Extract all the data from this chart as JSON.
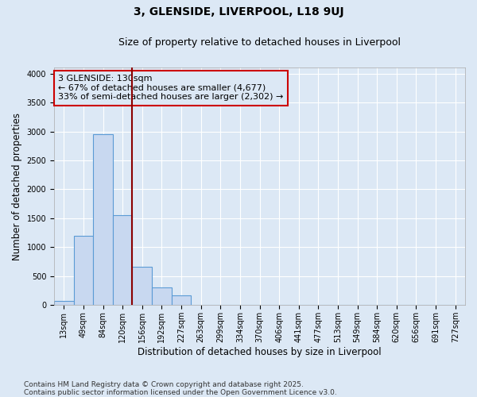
{
  "title": "3, GLENSIDE, LIVERPOOL, L18 9UJ",
  "subtitle": "Size of property relative to detached houses in Liverpool",
  "xlabel": "Distribution of detached houses by size in Liverpool",
  "ylabel": "Number of detached properties",
  "bar_labels": [
    "13sqm",
    "49sqm",
    "84sqm",
    "120sqm",
    "156sqm",
    "192sqm",
    "227sqm",
    "263sqm",
    "299sqm",
    "334sqm",
    "370sqm",
    "406sqm",
    "441sqm",
    "477sqm",
    "513sqm",
    "549sqm",
    "584sqm",
    "620sqm",
    "656sqm",
    "691sqm",
    "727sqm"
  ],
  "bar_values": [
    75,
    1200,
    2950,
    1550,
    660,
    310,
    175,
    0,
    0,
    0,
    0,
    0,
    0,
    0,
    0,
    0,
    0,
    0,
    0,
    0,
    0
  ],
  "bar_color": "#c8d8f0",
  "bar_edgecolor": "#5b9bd5",
  "vline_x": 3.5,
  "annotation_text": "3 GLENSIDE: 130sqm\n← 67% of detached houses are smaller (4,677)\n33% of semi-detached houses are larger (2,302) →",
  "annotation_box_edgecolor": "#cc0000",
  "vline_color": "#8b0000",
  "ylim": [
    0,
    4100
  ],
  "yticks": [
    0,
    500,
    1000,
    1500,
    2000,
    2500,
    3000,
    3500,
    4000
  ],
  "grid_color": "#ffffff",
  "bg_color": "#dce8f5",
  "footer_line1": "Contains HM Land Registry data © Crown copyright and database right 2025.",
  "footer_line2": "Contains public sector information licensed under the Open Government Licence v3.0.",
  "title_fontsize": 10,
  "subtitle_fontsize": 9,
  "axis_label_fontsize": 8.5,
  "tick_fontsize": 7,
  "annot_fontsize": 8
}
